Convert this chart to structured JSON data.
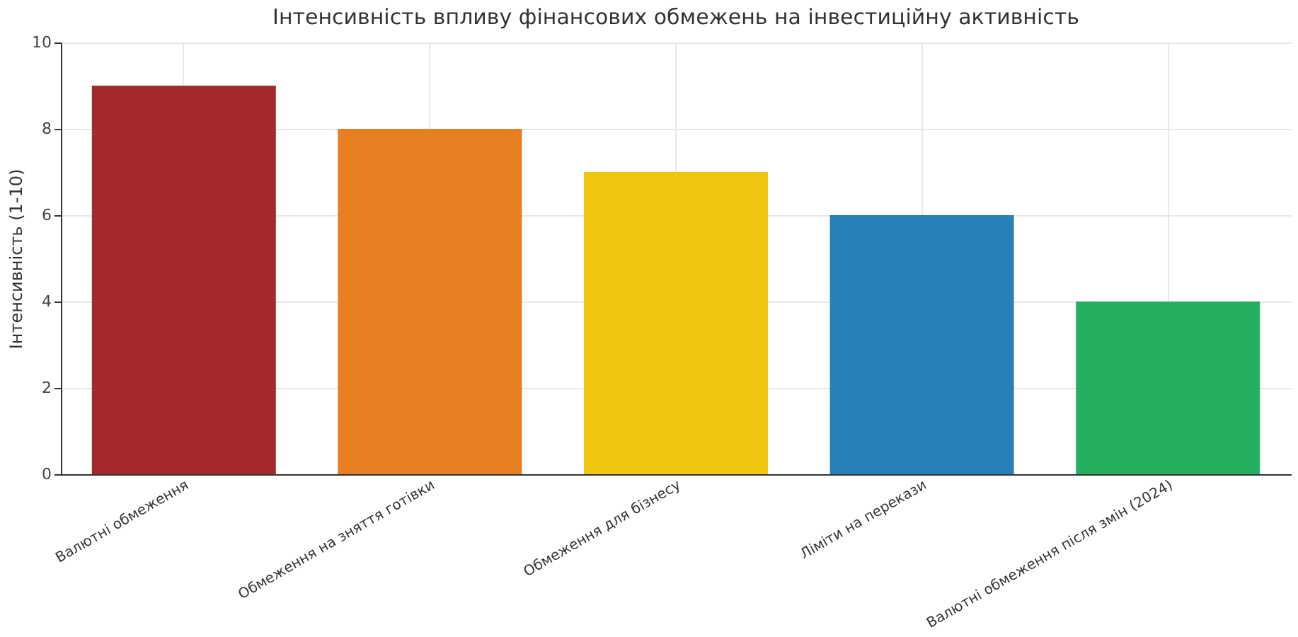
{
  "chart_data": {
    "type": "bar",
    "title": "Інтенсивність впливу фінансових обмежень на інвестиційну активність",
    "ylabel": "Інтенсивність (1-10)",
    "categories": [
      "Валютні обмеження",
      "Обмеження на зняття готівки",
      "Обмеження для бізнесу",
      "Ліміти на перекази",
      "Валютні обмеження після змін (2024)"
    ],
    "values": [
      9,
      8,
      7,
      6,
      4
    ],
    "colors": [
      "#a3292d",
      "#e67e22",
      "#f1c40f",
      "#2980b9",
      "#27ae60"
    ],
    "ylim": [
      0,
      10
    ],
    "yticks": [
      0,
      2,
      4,
      6,
      8,
      10
    ],
    "grid": true,
    "legend": false
  }
}
